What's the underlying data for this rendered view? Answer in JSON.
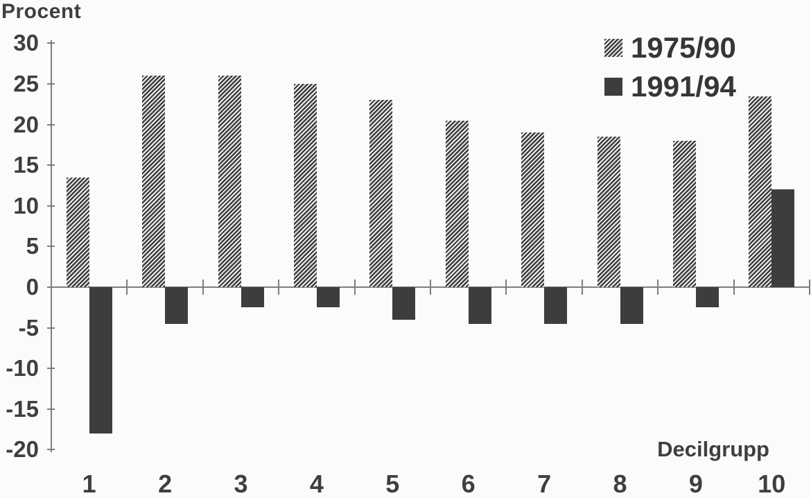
{
  "figure": {
    "background": "#fbfbfa",
    "text_color": "#3f3f3f",
    "axis_color": "#7e7e7e"
  },
  "chart_data": {
    "type": "bar",
    "title": "",
    "ylabel": "Procent",
    "xlabel": "Decilgrupp",
    "categories": [
      "1",
      "2",
      "3",
      "4",
      "5",
      "6",
      "7",
      "8",
      "9",
      "10"
    ],
    "series": [
      {
        "name": "1975/90",
        "style": "hatched",
        "values": [
          13.5,
          26,
          26,
          25,
          23,
          20.5,
          19,
          18.5,
          18,
          23.5
        ]
      },
      {
        "name": "1991/94",
        "style": "solid",
        "values": [
          -18,
          -4.5,
          -2.5,
          -2.5,
          -4,
          -4.5,
          -4.5,
          -4.5,
          -2.5,
          12
        ]
      }
    ],
    "ylim": [
      -20,
      30
    ],
    "y_ticks": [
      30,
      25,
      20,
      15,
      10,
      5,
      0,
      -5,
      -10,
      -15,
      -20
    ],
    "grid": false,
    "legend_position": "top-right",
    "bar_color": "#3d3d3d",
    "hatch_light_color": "#f2f1ef"
  }
}
